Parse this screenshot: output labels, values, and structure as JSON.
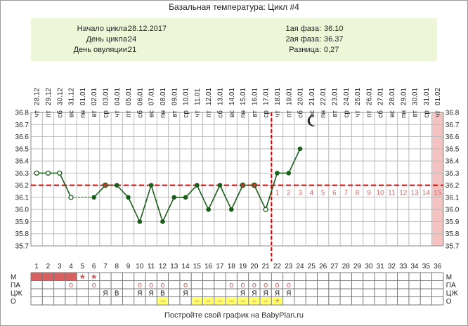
{
  "title": "Базальная температура: Цикл #4",
  "info": {
    "left": [
      {
        "label": "Начало цикла:",
        "value": "28.12.2017"
      },
      {
        "label": "День цикла:",
        "value": "24"
      },
      {
        "label": "День овуляции:",
        "value": "21"
      }
    ],
    "right": [
      {
        "label": "1ая фаза:",
        "value": "36.10"
      },
      {
        "label": "2ая фаза:",
        "value": "36.37"
      },
      {
        "label": "Разница:",
        "value": "0,27"
      }
    ]
  },
  "footer": "Постройте свой график на BabyPlan.ru",
  "colors": {
    "line": "#1a5c1a",
    "marker": "#1a5c1a",
    "marker_accent": "#c0392b",
    "coverline": "#dd0000",
    "ovulation_line": "#cc0000",
    "grid": "#bbbbbb",
    "highlight_column": "#f5c2c2",
    "menses_bar": "#d96060",
    "o_highlight": "#ffff66",
    "phase_number": "#cc6666"
  },
  "chart_data": {
    "type": "line",
    "ylim": [
      35.7,
      36.8
    ],
    "yticks": [
      "36.8",
      "36.7",
      "36.6",
      "36.5",
      "36.4",
      "36.3",
      "36.2",
      "36.1",
      "36.0",
      "35.9",
      "35.8",
      "35.7"
    ],
    "days": [
      "1",
      "2",
      "3",
      "4",
      "5",
      "6",
      "7",
      "8",
      "9",
      "10",
      "11",
      "12",
      "13",
      "14",
      "15",
      "16",
      "17",
      "18",
      "19",
      "20",
      "21",
      "22",
      "23",
      "24",
      "25",
      "26",
      "27",
      "28",
      "29",
      "30",
      "31",
      "32",
      "33",
      "34",
      "35",
      "36"
    ],
    "dates": [
      "28.12",
      "29.12",
      "30.12",
      "31.12",
      "01.01",
      "02.01",
      "03.01",
      "04.01",
      "05.01",
      "06.01",
      "07.01",
      "08.01",
      "09.01",
      "10.01",
      "11.01",
      "12.01",
      "13.01",
      "14.01",
      "15.01",
      "16.01",
      "17.01",
      "18.01",
      "19.01",
      "20.01",
      "21.01",
      "22.01",
      "23.01",
      "24.01",
      "25.01",
      "26.01",
      "27.01",
      "28.01",
      "29.01",
      "30.01",
      "31.01",
      "01.02"
    ],
    "weekdays": [
      "чт",
      "пт",
      "сб",
      "вс",
      "пн",
      "вт",
      "ср",
      "чт",
      "пт",
      "сб",
      "вс",
      "пн",
      "вт",
      "ср",
      "чт",
      "пт",
      "сб",
      "вс",
      "пн",
      "вт",
      "ср",
      "чт",
      "пт",
      "сб",
      "вс",
      "пн",
      "вт",
      "ср",
      "чт",
      "пт",
      "сб",
      "вс",
      "пн",
      "вт",
      "ср",
      "чт"
    ],
    "temperatures": [
      {
        "day": 1,
        "value": 36.3,
        "hollow": true
      },
      {
        "day": 2,
        "value": 36.3,
        "hollow": true
      },
      {
        "day": 3,
        "value": 36.3,
        "hollow": true
      },
      {
        "day": 4,
        "value": 36.1,
        "hollow": true
      },
      {
        "day": 6,
        "value": 36.1
      },
      {
        "day": 7,
        "value": 36.2,
        "accent": true
      },
      {
        "day": 8,
        "value": 36.2
      },
      {
        "day": 9,
        "value": 36.1
      },
      {
        "day": 10,
        "value": 35.9
      },
      {
        "day": 11,
        "value": 36.2
      },
      {
        "day": 12,
        "value": 35.9
      },
      {
        "day": 13,
        "value": 36.1
      },
      {
        "day": 14,
        "value": 36.1
      },
      {
        "day": 15,
        "value": 36.2
      },
      {
        "day": 16,
        "value": 36.0
      },
      {
        "day": 17,
        "value": 36.2
      },
      {
        "day": 18,
        "value": 36.0
      },
      {
        "day": 19,
        "value": 36.2,
        "accent": true
      },
      {
        "day": 20,
        "value": 36.2,
        "accent": true
      },
      {
        "day": 21,
        "value": 36.0,
        "hollow": true
      },
      {
        "day": 22,
        "value": 36.3
      },
      {
        "day": 23,
        "value": 36.3
      },
      {
        "day": 24,
        "value": 36.5
      }
    ],
    "dashed_segments": [
      [
        4,
        6
      ]
    ],
    "coverline": 36.2,
    "ovulation_day": 21,
    "luteal_numbers": [
      "1",
      "2",
      "3",
      "4",
      "5",
      "6",
      "7",
      "8",
      "9",
      "10",
      "11",
      "12",
      "13",
      "14",
      "15"
    ],
    "highlight_day": 36,
    "moon_day": 25,
    "rows": [
      {
        "label": "М",
        "marks": [
          {
            "day": 1,
            "type": "bar"
          },
          {
            "day": 2,
            "type": "bar"
          },
          {
            "day": 3,
            "type": "bar"
          },
          {
            "day": 4,
            "type": "bar"
          },
          {
            "day": 5,
            "type": "text",
            "text": "★"
          },
          {
            "day": 6,
            "type": "text",
            "text": "★"
          }
        ]
      },
      {
        "label": "ПА",
        "marks": [
          {
            "day": 4,
            "type": "text",
            "text": "o"
          },
          {
            "day": 6,
            "type": "text",
            "text": "o"
          },
          {
            "day": 10,
            "type": "text",
            "text": "o"
          },
          {
            "day": 11,
            "type": "text",
            "text": "o"
          },
          {
            "day": 12,
            "type": "text",
            "text": "o"
          },
          {
            "day": 14,
            "type": "text",
            "text": "o"
          },
          {
            "day": 18,
            "type": "text",
            "text": "o"
          },
          {
            "day": 19,
            "type": "text",
            "text": "o"
          },
          {
            "day": 20,
            "type": "text",
            "text": "o"
          },
          {
            "day": 21,
            "type": "text",
            "text": "o"
          },
          {
            "day": 22,
            "type": "text",
            "text": "o"
          },
          {
            "day": 23,
            "type": "text",
            "text": "o"
          }
        ]
      },
      {
        "label": "ЦЖ",
        "marks": [
          {
            "day": 7,
            "type": "text",
            "text": "Я"
          },
          {
            "day": 8,
            "type": "text",
            "text": "В"
          },
          {
            "day": 10,
            "type": "text",
            "text": "Я"
          },
          {
            "day": 11,
            "type": "text",
            "text": "Я"
          },
          {
            "day": 12,
            "type": "text",
            "text": "В"
          },
          {
            "day": 14,
            "type": "text",
            "text": "Я"
          },
          {
            "day": 19,
            "type": "text",
            "text": "Я"
          },
          {
            "day": 20,
            "type": "text",
            "text": "Я"
          },
          {
            "day": 21,
            "type": "text",
            "text": "Я"
          },
          {
            "day": 22,
            "type": "text",
            "text": "Я"
          },
          {
            "day": 23,
            "type": "text",
            "text": "Я"
          }
        ]
      },
      {
        "label": "О",
        "marks": [
          {
            "day": 12,
            "type": "hl",
            "text": "–"
          },
          {
            "day": 15,
            "type": "hl",
            "text": "–"
          },
          {
            "day": 16,
            "type": "hl",
            "text": "–"
          },
          {
            "day": 17,
            "type": "hl",
            "text": "–"
          },
          {
            "day": 18,
            "type": "hl",
            "text": "–"
          },
          {
            "day": 19,
            "type": "hl",
            "text": "–"
          },
          {
            "day": 20,
            "type": "hl",
            "text": "–"
          },
          {
            "day": 21,
            "type": "hl",
            "text": "–"
          },
          {
            "day": 22,
            "type": "hl",
            "text": "+"
          }
        ]
      }
    ]
  }
}
